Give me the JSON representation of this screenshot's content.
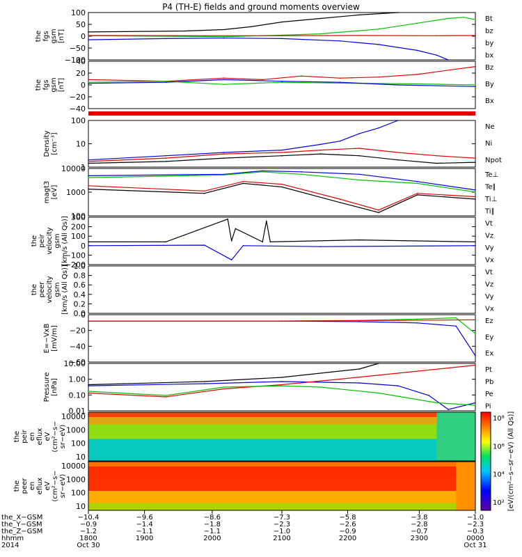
{
  "title": "P4 (TH-E) fields and ground moments overview",
  "colors": {
    "black": "#000000",
    "red": "#e00000",
    "green": "#00c000",
    "blue": "#0000e0"
  },
  "chart_data": [
    {
      "type": "line",
      "ylabel": [
        "the",
        "fgs",
        "gsm",
        "[nT]"
      ],
      "yticks": [
        "100",
        "50",
        "0",
        "−50",
        "−100"
      ],
      "ylim": [
        -100,
        100
      ],
      "legend": [
        {
          "name": "Bt",
          "color": "#000000"
        },
        {
          "name": "bz",
          "color": "#e00000"
        },
        {
          "name": "by",
          "color": "#00c000"
        },
        {
          "name": "bx",
          "color": "#0000e0"
        }
      ],
      "series": [
        {
          "name": "Bt",
          "color": "#000000",
          "x": [
            0,
            0.25,
            0.35,
            0.42,
            0.5,
            0.6,
            0.7,
            0.8
          ],
          "y": [
            18,
            22,
            28,
            40,
            60,
            75,
            90,
            100
          ]
        },
        {
          "name": "by",
          "color": "#00c000",
          "x": [
            0,
            0.2,
            0.35,
            0.45,
            0.6,
            0.75,
            0.85,
            0.93,
            0.97,
            1
          ],
          "y": [
            2,
            0,
            -2,
            2,
            10,
            30,
            55,
            75,
            80,
            70
          ]
        },
        {
          "name": "bx",
          "color": "#0000e0",
          "x": [
            0,
            0.2,
            0.35,
            0.5,
            0.65,
            0.75,
            0.85,
            0.9,
            0.93
          ],
          "y": [
            -15,
            -10,
            -8,
            -10,
            -20,
            -35,
            -60,
            -80,
            -100
          ]
        },
        {
          "name": "bz",
          "color": "#e00000",
          "x": [
            0,
            0.3,
            0.5,
            0.7,
            0.9,
            1
          ],
          "y": [
            3,
            2,
            2,
            3,
            2,
            3
          ]
        }
      ]
    },
    {
      "type": "line",
      "ylabel": [
        "the",
        "fgs",
        "gsm",
        "[nT]"
      ],
      "yticks": [
        "40",
        "20",
        "0",
        "−20",
        "−40"
      ],
      "ylim": [
        -50,
        40
      ],
      "legend": [
        {
          "name": "Bz",
          "color": "#e00000"
        },
        {
          "name": "By",
          "color": "#00c000"
        },
        {
          "name": "Bx",
          "color": "#0000e0"
        }
      ],
      "series": [
        {
          "name": "Bz",
          "color": "#e00000",
          "x": [
            0,
            0.2,
            0.35,
            0.45,
            0.55,
            0.65,
            0.75,
            0.85,
            0.95,
            1
          ],
          "y": [
            5,
            2,
            8,
            5,
            12,
            8,
            10,
            15,
            25,
            30
          ]
        },
        {
          "name": "By",
          "color": "#00c000",
          "x": [
            0,
            0.2,
            0.35,
            0.5,
            0.7,
            0.85,
            1
          ],
          "y": [
            0,
            2,
            -4,
            0,
            -2,
            -3,
            -5
          ]
        },
        {
          "name": "Bx",
          "color": "#0000e0",
          "x": [
            0,
            0.2,
            0.35,
            0.5,
            0.65,
            0.8,
            1
          ],
          "y": [
            -2,
            0,
            5,
            2,
            0,
            -5,
            -8
          ]
        }
      ]
    },
    {
      "type": "line",
      "ylabel": [
        "Density",
        "[cm⁻³]"
      ],
      "yticks": [
        "100",
        "10",
        "1"
      ],
      "log": true,
      "ylim": [
        0.5,
        150
      ],
      "legend": [
        {
          "name": "Ne",
          "color": "#e00000"
        },
        {
          "name": "Ni",
          "color": "#000000"
        },
        {
          "name": "Npot",
          "color": "#0000e0"
        }
      ],
      "series": [
        {
          "name": "Npot",
          "color": "#0000e0",
          "x": [
            0,
            0.2,
            0.35,
            0.5,
            0.6,
            0.65,
            0.7,
            0.75,
            0.8
          ],
          "y": [
            1.2,
            2,
            3,
            4,
            8,
            12,
            30,
            60,
            150
          ]
        },
        {
          "name": "Ne",
          "color": "#e00000",
          "x": [
            0,
            0.2,
            0.35,
            0.5,
            0.6,
            0.7,
            0.8,
            0.9,
            1
          ],
          "y": [
            1,
            1.5,
            2.5,
            3,
            4,
            5,
            3,
            2,
            1.5
          ]
        },
        {
          "name": "Ni",
          "color": "#000000",
          "x": [
            0,
            0.2,
            0.35,
            0.5,
            0.6,
            0.7,
            0.8,
            0.9,
            1
          ],
          "y": [
            0.8,
            1,
            1.5,
            2,
            2.5,
            2,
            1.2,
            0.8,
            0.9
          ]
        }
      ]
    },
    {
      "type": "line",
      "ylabel": [
        "magt3",
        "[eV]"
      ],
      "yticks": [
        "10000",
        "1000",
        "100"
      ],
      "log": true,
      "ylim": [
        40,
        12000
      ],
      "legend": [
        {
          "name": "Te⊥",
          "color": "#e00000"
        },
        {
          "name": "Te∥",
          "color": "#000000"
        },
        {
          "name": "Ti⊥",
          "color": "#0000e0"
        },
        {
          "name": "Ti∥",
          "color": "#00c000"
        }
      ],
      "series": [
        {
          "name": "Ti⊥",
          "color": "#0000e0",
          "x": [
            0,
            0.35,
            0.45,
            0.55,
            0.7,
            0.85,
            1
          ],
          "y": [
            5000,
            6000,
            9000,
            8000,
            6000,
            2500,
            900
          ]
        },
        {
          "name": "Ti∥",
          "color": "#00c000",
          "x": [
            0,
            0.35,
            0.45,
            0.55,
            0.7,
            0.85,
            1
          ],
          "y": [
            4000,
            5500,
            8000,
            6000,
            3000,
            2000,
            700
          ]
        },
        {
          "name": "Te⊥",
          "color": "#e00000",
          "x": [
            0,
            0.3,
            0.4,
            0.5,
            0.65,
            0.75,
            0.85,
            1
          ],
          "y": [
            1500,
            800,
            2500,
            1800,
            300,
            80,
            600,
            400
          ]
        },
        {
          "name": "Te∥",
          "color": "#000000",
          "x": [
            0,
            0.3,
            0.4,
            0.5,
            0.65,
            0.75,
            0.85,
            1
          ],
          "y": [
            1000,
            600,
            2000,
            1300,
            200,
            60,
            500,
            300
          ]
        }
      ]
    },
    {
      "type": "line",
      "ylabel": [
        "the",
        "peir",
        "velocity",
        "gsm",
        "[km/s (All Qs)]"
      ],
      "yticks": [
        "300",
        "200",
        "100",
        "0",
        "−100",
        "−200"
      ],
      "ylim": [
        -200,
        300
      ],
      "legend": [
        {
          "name": "Vt",
          "color": "#000000"
        },
        {
          "name": "Vz",
          "color": "#e00000"
        },
        {
          "name": "Vy",
          "color": "#00c000"
        },
        {
          "name": "Vx",
          "color": "#0000e0"
        }
      ],
      "series": [
        {
          "name": "Vt",
          "color": "#000000",
          "x": [
            0,
            0.2,
            0.36,
            0.37,
            0.38,
            0.45,
            0.46,
            0.47,
            0.7,
            1
          ],
          "y": [
            40,
            40,
            280,
            50,
            180,
            40,
            260,
            40,
            60,
            40
          ]
        },
        {
          "name": "Vx",
          "color": "#0000e0",
          "x": [
            0,
            0.3,
            0.37,
            0.4,
            0.6,
            1
          ],
          "y": [
            0,
            5,
            -150,
            0,
            -10,
            0
          ]
        }
      ]
    },
    {
      "type": "line",
      "ylabel": [
        "the",
        "peer",
        "velocity",
        "gsm",
        "[km/s (All Qs)]"
      ],
      "yticks": [
        "1.0",
        "0.8",
        "0.6",
        "0.4",
        "0.2",
        "0.0"
      ],
      "ylim": [
        0,
        1
      ],
      "legend": [
        {
          "name": "Vt",
          "color": "#000000"
        },
        {
          "name": "Vz",
          "color": "#e00000"
        },
        {
          "name": "Vy",
          "color": "#00c000"
        },
        {
          "name": "Vx",
          "color": "#0000e0"
        }
      ],
      "series": []
    },
    {
      "type": "line",
      "ylabel": [
        "E=−VxB",
        "[mV/m]"
      ],
      "yticks": [
        "0",
        "−20",
        "−40",
        "−60"
      ],
      "ylim": [
        -65,
        10
      ],
      "legend": [
        {
          "name": "Ez",
          "color": "#e00000"
        },
        {
          "name": "Ey",
          "color": "#00c000"
        },
        {
          "name": "Ex",
          "color": "#0000e0"
        }
      ],
      "series": [
        {
          "name": "Ey",
          "color": "#00c000",
          "x": [
            0,
            0.5,
            0.7,
            0.85,
            0.95,
            1
          ],
          "y": [
            0,
            0,
            1,
            3,
            5,
            -20
          ]
        },
        {
          "name": "Ex",
          "color": "#0000e0",
          "x": [
            0,
            0.5,
            0.7,
            0.85,
            0.95,
            1
          ],
          "y": [
            0,
            0,
            -1,
            -3,
            -8,
            -55
          ]
        },
        {
          "name": "Ez",
          "color": "#e00000",
          "x": [
            0,
            0.5,
            0.8,
            1
          ],
          "y": [
            0,
            0,
            1,
            2
          ]
        }
      ]
    },
    {
      "type": "line",
      "ylabel": [
        "Pressure",
        "[nPa]"
      ],
      "yticks": [
        "10.00",
        "1.00",
        "0.10",
        "0.01"
      ],
      "log": true,
      "ylim": [
        0.008,
        20
      ],
      "legend": [
        {
          "name": "Pt",
          "color": "#000000"
        },
        {
          "name": "Pb",
          "color": "#e00000"
        },
        {
          "name": "Pe",
          "color": "#00c000"
        },
        {
          "name": "Pi",
          "color": "#0000e0"
        }
      ],
      "series": [
        {
          "name": "Pi",
          "color": "#0000e0",
          "x": [
            0,
            0.3,
            0.5,
            0.7,
            0.8,
            0.88,
            0.93,
            1
          ],
          "y": [
            0.5,
            0.7,
            1,
            0.8,
            0.5,
            0.1,
            0.01,
            0.03
          ]
        },
        {
          "name": "Pt",
          "color": "#000000",
          "x": [
            0,
            0.3,
            0.5,
            0.7,
            0.75
          ],
          "y": [
            0.6,
            1,
            2,
            8,
            20
          ]
        },
        {
          "name": "Pb",
          "color": "#e00000",
          "x": [
            0,
            0.2,
            0.35,
            0.5,
            0.65,
            0.8,
            1
          ],
          "y": [
            0.15,
            0.08,
            0.3,
            0.6,
            1.5,
            4,
            15
          ]
        },
        {
          "name": "Pe",
          "color": "#00c000",
          "x": [
            0,
            0.2,
            0.35,
            0.5,
            0.6,
            0.75,
            0.9,
            1
          ],
          "y": [
            0.2,
            0.1,
            0.4,
            0.5,
            0.4,
            0.15,
            0.03,
            0.02
          ]
        }
      ]
    }
  ],
  "spectrograms": [
    {
      "ylabel": [
        "the",
        "peir",
        "en",
        "eflux",
        "eV",
        "(cm²−s−",
        "sr−eV)"
      ],
      "yticks": [
        "10000",
        "1000",
        "100",
        "10"
      ]
    },
    {
      "ylabel": [
        "the",
        "peer",
        "en",
        "eflux",
        "eV",
        "(cm²−s−",
        "sr−eV)"
      ],
      "yticks": [
        "10000",
        "1000",
        "100",
        "10"
      ]
    }
  ],
  "colorbar": {
    "label": "[eV/(cm²−s−sr−eV) (All Qs)]",
    "ticks": [
      "10⁸",
      "10⁶",
      "10⁴",
      "10²"
    ]
  },
  "xaxis": {
    "rows": [
      {
        "name": "the_X−GSM",
        "values": [
          "−10.4",
          "−9.6",
          "−8.6",
          "−7.3",
          "−5.8",
          "−3.8",
          "−1.0"
        ]
      },
      {
        "name": "the_Y−GSM",
        "values": [
          "−0.9",
          "−1.4",
          "−1.8",
          "−2.3",
          "−2.6",
          "−2.8",
          "−2.3"
        ]
      },
      {
        "name": "the_Z−GSM",
        "values": [
          "−1.2",
          "−1.1",
          "−1.1",
          "−1.0",
          "−0.9",
          "−0.7",
          "−0.3"
        ]
      },
      {
        "name": "hhmm",
        "values": [
          "1800",
          "1900",
          "2000",
          "2100",
          "2200",
          "2300",
          "0000"
        ]
      },
      {
        "name": "2014",
        "values": [
          "Oct 30",
          "",
          "",
          "",
          "",
          "",
          "Oct 31"
        ]
      }
    ]
  }
}
